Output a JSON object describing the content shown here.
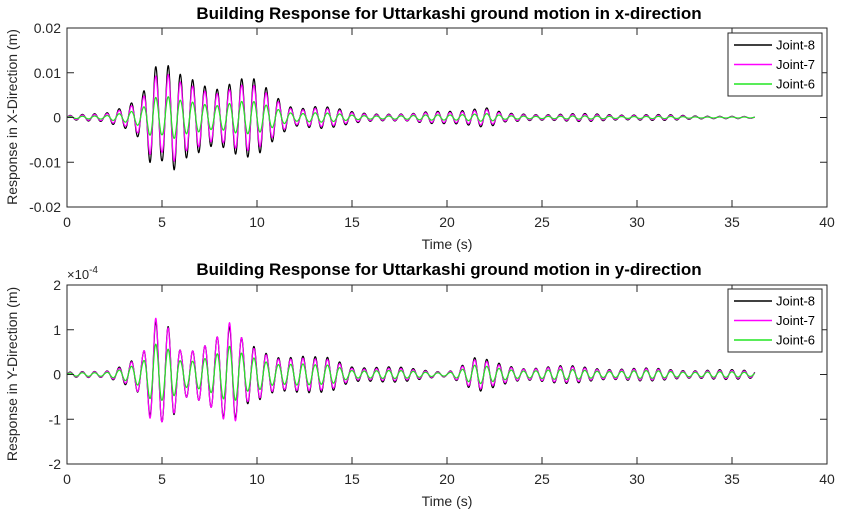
{
  "chart_data": [
    {
      "type": "line",
      "title": "Building Response for Uttarkashi ground motion in x-direction",
      "xlabel": "Time (s)",
      "ylabel": "Response in X-Direction (m)",
      "xlim": [
        0,
        40
      ],
      "ylim": [
        -0.02,
        0.02
      ],
      "x_ticks": [
        0,
        5,
        10,
        15,
        20,
        25,
        30,
        35,
        40
      ],
      "x_tick_labels": [
        "0",
        "5",
        "10",
        "15",
        "20",
        "25",
        "30",
        "35",
        "40"
      ],
      "y_ticks": [
        -0.02,
        -0.01,
        0,
        0.01,
        0.02
      ],
      "y_tick_labels": [
        "-0.02",
        "-0.01",
        "0",
        "0.01",
        "0.02"
      ],
      "exponent_label": "",
      "grid": false,
      "legend_position": "top-right",
      "oscillation_frequency_hz": 1.55,
      "x_end": 36.2,
      "series": [
        {
          "name": "Joint-8",
          "color": "#000000",
          "envelope": [
            [
              0,
              0.0005
            ],
            [
              2,
              0.001
            ],
            [
              3,
              0.0035
            ],
            [
              4,
              0.0075
            ],
            [
              4.5,
              0.014
            ],
            [
              5,
              0.01
            ],
            [
              5.5,
              0.0125
            ],
            [
              6,
              0.01
            ],
            [
              7,
              0.011
            ],
            [
              8,
              0.0095
            ],
            [
              8.8,
              0.0095
            ],
            [
              9.5,
              0.009
            ],
            [
              10,
              0.0085
            ],
            [
              11,
              0.006
            ],
            [
              12,
              0.003
            ],
            [
              13,
              0.003
            ],
            [
              14,
              0.0022
            ],
            [
              15,
              0.0015
            ],
            [
              18,
              0.0008
            ],
            [
              21,
              0.0025
            ],
            [
              22,
              0.0025
            ],
            [
              23,
              0.001
            ],
            [
              27,
              0.0009
            ],
            [
              30,
              0.0008
            ],
            [
              34,
              0.0004
            ],
            [
              36,
              0.0002
            ]
          ]
        },
        {
          "name": "Joint-7",
          "color": "#ff00ff",
          "envelope": [
            [
              0,
              0.0004
            ],
            [
              2,
              0.0008
            ],
            [
              3,
              0.0028
            ],
            [
              4,
              0.006
            ],
            [
              4.5,
              0.0115
            ],
            [
              5,
              0.008
            ],
            [
              5.5,
              0.0105
            ],
            [
              6,
              0.0082
            ],
            [
              7,
              0.0092
            ],
            [
              8,
              0.008
            ],
            [
              8.8,
              0.008
            ],
            [
              9.5,
              0.0075
            ],
            [
              10,
              0.007
            ],
            [
              11,
              0.005
            ],
            [
              12,
              0.0025
            ],
            [
              13,
              0.0025
            ],
            [
              14,
              0.0018
            ],
            [
              15,
              0.0012
            ],
            [
              18,
              0.0007
            ],
            [
              21,
              0.002
            ],
            [
              22,
              0.002
            ],
            [
              23,
              0.0008
            ],
            [
              27,
              0.0007
            ],
            [
              30,
              0.0006
            ],
            [
              34,
              0.0003
            ],
            [
              36,
              0.0002
            ]
          ]
        },
        {
          "name": "Joint-6",
          "color": "#22e622",
          "envelope": [
            [
              0,
              0.0002
            ],
            [
              2,
              0.0004
            ],
            [
              3,
              0.0015
            ],
            [
              4,
              0.003
            ],
            [
              4.5,
              0.0055
            ],
            [
              5,
              0.004
            ],
            [
              5.5,
              0.005
            ],
            [
              6,
              0.004
            ],
            [
              7,
              0.0045
            ],
            [
              8,
              0.004
            ],
            [
              8.8,
              0.004
            ],
            [
              9.5,
              0.0037
            ],
            [
              10,
              0.0035
            ],
            [
              11,
              0.0025
            ],
            [
              12,
              0.0013
            ],
            [
              13,
              0.0013
            ],
            [
              14,
              0.0009
            ],
            [
              15,
              0.0006
            ],
            [
              18,
              0.0004
            ],
            [
              21,
              0.001
            ],
            [
              22,
              0.001
            ],
            [
              23,
              0.0004
            ],
            [
              27,
              0.00035
            ],
            [
              30,
              0.0003
            ],
            [
              34,
              0.00015
            ],
            [
              36,
              0.0001
            ]
          ]
        }
      ]
    },
    {
      "type": "line",
      "title": "Building Response for Uttarkashi ground motion in y-direction",
      "xlabel": "Time (s)",
      "ylabel": "Response in Y-Direction (m)",
      "xlim": [
        0,
        40
      ],
      "ylim": [
        -0.0002,
        0.0002
      ],
      "x_ticks": [
        0,
        5,
        10,
        15,
        20,
        25,
        30,
        35,
        40
      ],
      "x_tick_labels": [
        "0",
        "5",
        "10",
        "15",
        "20",
        "25",
        "30",
        "35",
        "40"
      ],
      "y_ticks": [
        -0.0002,
        -0.0001,
        0,
        0.0001,
        0.0002
      ],
      "y_tick_labels": [
        "-2",
        "-1",
        "0",
        "1",
        "2"
      ],
      "exponent_label": "×10",
      "exponent_power": "-4",
      "grid": false,
      "legend_position": "top-right",
      "oscillation_frequency_hz": 1.55,
      "x_end": 36.2,
      "series": [
        {
          "name": "Joint-8",
          "color": "#000000",
          "envelope": [
            [
              0,
              5e-06
            ],
            [
              2,
              1e-05
            ],
            [
              3,
              3e-05
            ],
            [
              4,
              5e-05
            ],
            [
              4.6,
              0.00012
            ],
            [
              5,
              0.00011
            ],
            [
              5.5,
              0.000125
            ],
            [
              6,
              7e-05
            ],
            [
              7,
              9e-05
            ],
            [
              8,
              0.0001
            ],
            [
              8.6,
              0.00011
            ],
            [
              9.5,
              7e-05
            ],
            [
              10,
              7.5e-05
            ],
            [
              11,
              6e-05
            ],
            [
              12,
              5e-05
            ],
            [
              13,
              4e-05
            ],
            [
              14,
              4e-05
            ],
            [
              15,
              2.5e-05
            ],
            [
              18,
              1.5e-05
            ],
            [
              20,
              8e-06
            ],
            [
              21.5,
              4e-05
            ],
            [
              22.5,
              3e-05
            ],
            [
              24,
              2e-05
            ],
            [
              27,
              2e-05
            ],
            [
              30,
              1.5e-05
            ],
            [
              34,
              1.2e-05
            ],
            [
              36,
              1e-05
            ]
          ]
        },
        {
          "name": "Joint-7",
          "color": "#ff00ff",
          "envelope": [
            [
              0,
              4e-06
            ],
            [
              2,
              9e-06
            ],
            [
              3,
              2.5e-05
            ],
            [
              4,
              5e-05
            ],
            [
              4.6,
              0.00013
            ],
            [
              5,
              0.00011
            ],
            [
              5.5,
              0.00012
            ],
            [
              6,
              7e-05
            ],
            [
              7,
              9e-05
            ],
            [
              8,
              0.0001
            ],
            [
              8.6,
              0.00012
            ],
            [
              9.5,
              6.5e-05
            ],
            [
              10,
              7e-05
            ],
            [
              11,
              5.5e-05
            ],
            [
              12,
              4.5e-05
            ],
            [
              13,
              3.5e-05
            ],
            [
              14,
              3.5e-05
            ],
            [
              15,
              2e-05
            ],
            [
              18,
              1.2e-05
            ],
            [
              20,
              7e-06
            ],
            [
              21.5,
              3.5e-05
            ],
            [
              22.5,
              2.5e-05
            ],
            [
              24,
              1.8e-05
            ],
            [
              27,
              1.7e-05
            ],
            [
              30,
              1.3e-05
            ],
            [
              34,
              1e-05
            ],
            [
              36,
              8e-06
            ]
          ]
        },
        {
          "name": "Joint-6",
          "color": "#22e622",
          "envelope": [
            [
              0,
              3e-06
            ],
            [
              2,
              6e-06
            ],
            [
              3,
              1.8e-05
            ],
            [
              4,
              3e-05
            ],
            [
              4.6,
              7e-05
            ],
            [
              5,
              6e-05
            ],
            [
              5.5,
              6.5e-05
            ],
            [
              6,
              4e-05
            ],
            [
              7,
              5e-05
            ],
            [
              8,
              5.5e-05
            ],
            [
              8.6,
              6.5e-05
            ],
            [
              9.5,
              4e-05
            ],
            [
              10,
              4.5e-05
            ],
            [
              11,
              3.5e-05
            ],
            [
              12,
              3e-05
            ],
            [
              13,
              2.2e-05
            ],
            [
              14,
              2.2e-05
            ],
            [
              15,
              1.3e-05
            ],
            [
              18,
              8e-06
            ],
            [
              20,
              5e-06
            ],
            [
              21.5,
              2.2e-05
            ],
            [
              22.5,
              1.6e-05
            ],
            [
              24,
              1.2e-05
            ],
            [
              27,
              1.1e-05
            ],
            [
              30,
              9e-06
            ],
            [
              34,
              7e-06
            ],
            [
              36,
              5e-06
            ]
          ]
        }
      ]
    }
  ]
}
